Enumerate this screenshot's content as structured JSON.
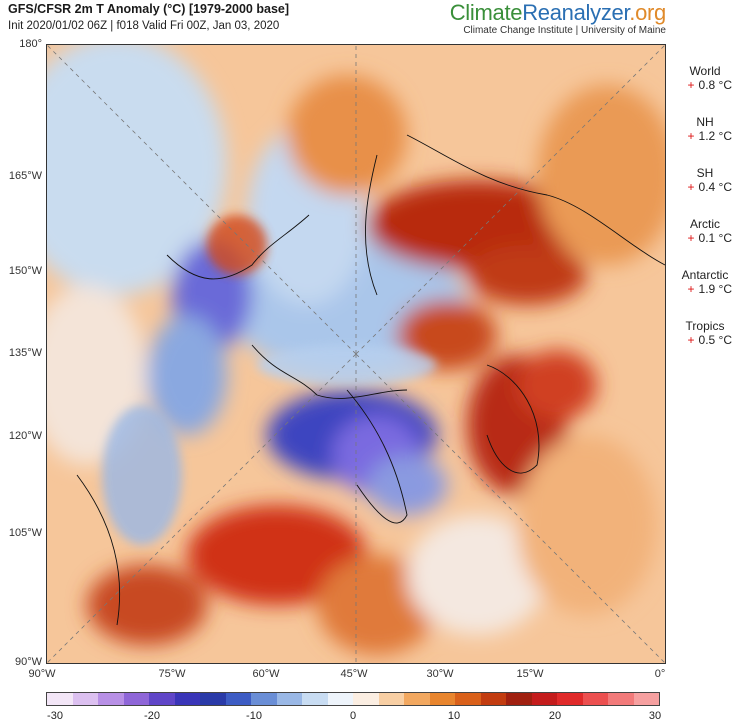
{
  "header": {
    "title": "GFS/CFSR 2m T Anomaly (°C) [1979-2000 base]",
    "subtitle": "Init 2020/01/02 06Z | f018 Valid Fri 00Z, Jan 03, 2020",
    "brand_part1": "Climate",
    "brand_part2": "Reanalyzer",
    "brand_part3": ".org",
    "brand_sub": "Climate Change Institute | University of Maine"
  },
  "map": {
    "lat_labels": [
      "180°",
      "165°W",
      "150°W",
      "135°W",
      "120°W",
      "105°W",
      "90°W"
    ],
    "lon_labels": [
      "90°W",
      "75°W",
      "60°W",
      "45°W",
      "30°W",
      "15°W",
      "0°"
    ]
  },
  "stats": [
    {
      "name": "World",
      "sign": "+",
      "value": "0.8 °C"
    },
    {
      "name": "NH",
      "sign": "+",
      "value": "1.2 °C"
    },
    {
      "name": "SH",
      "sign": "+",
      "value": "0.4 °C"
    },
    {
      "name": "Arctic",
      "sign": "+",
      "value": "0.1 °C"
    },
    {
      "name": "Antarctic",
      "sign": "+",
      "value": "1.9 °C"
    },
    {
      "name": "Tropics",
      "sign": "+",
      "value": "0.5 °C"
    }
  ],
  "colorbar": {
    "ticks": [
      "-30",
      "-20",
      "-10",
      "0",
      "10",
      "20",
      "30"
    ],
    "colors": [
      "#f3e6f7",
      "#dcc0f0",
      "#b890e6",
      "#8f66d8",
      "#6046c8",
      "#3a35b8",
      "#2a3aa8",
      "#3d5cc4",
      "#6a8ed6",
      "#9ab8e6",
      "#c8dcf2",
      "#eef4fb",
      "#fbeee2",
      "#f8cfa4",
      "#f2a860",
      "#e8852e",
      "#d9601a",
      "#c23c10",
      "#a02010",
      "#c41c1c",
      "#e02a2a",
      "#ec5050",
      "#f27a7a",
      "#f6a0a0"
    ]
  }
}
